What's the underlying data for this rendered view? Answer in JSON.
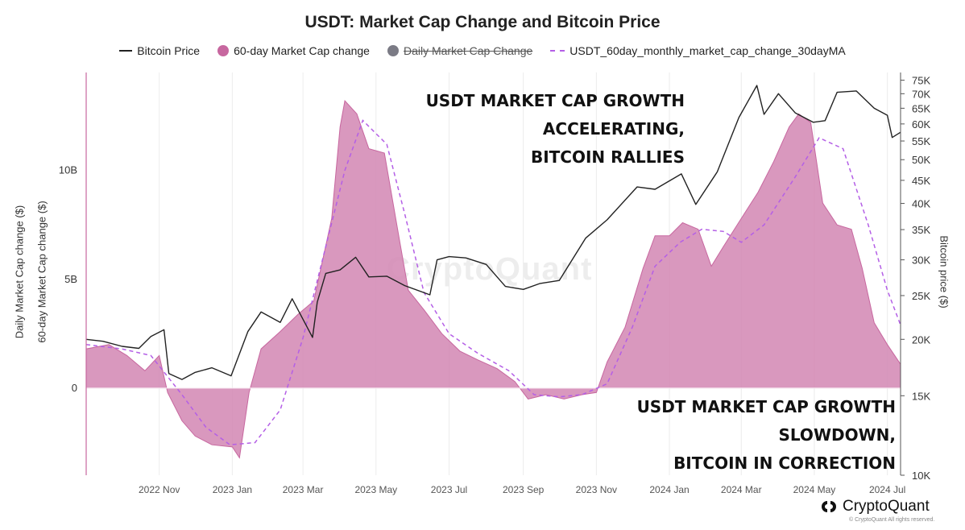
{
  "chart_data": {
    "type": "area",
    "title": "USDT: Market Cap Change and Bitcoin Price",
    "ylabel_left_1": "Daily Market Cap change ($)",
    "ylabel_left_2": "60-day Market Cap change ($)",
    "ylabel_right": "Bitcoin price ($)",
    "y_left_ticks": [
      {
        "value": 10000000000,
        "label": "10B"
      },
      {
        "value": 5000000000,
        "label": "5B"
      },
      {
        "value": 0,
        "label": "0"
      }
    ],
    "y_left_range": [
      -4000000000,
      14500000000
    ],
    "y_right_scale": "log",
    "y_right_range": [
      10000,
      78000
    ],
    "y_right_ticks": [
      {
        "value": 75000,
        "label": "75K"
      },
      {
        "value": 70000,
        "label": "70K"
      },
      {
        "value": 65000,
        "label": "65K"
      },
      {
        "value": 60000,
        "label": "60K"
      },
      {
        "value": 55000,
        "label": "55K"
      },
      {
        "value": 50000,
        "label": "50K"
      },
      {
        "value": 45000,
        "label": "45K"
      },
      {
        "value": 40000,
        "label": "40K"
      },
      {
        "value": 35000,
        "label": "35K"
      },
      {
        "value": 30000,
        "label": "30K"
      },
      {
        "value": 25000,
        "label": "25K"
      },
      {
        "value": 20000,
        "label": "20K"
      },
      {
        "value": 15000,
        "label": "15K"
      },
      {
        "value": 10000,
        "label": "10K"
      }
    ],
    "x_range": [
      "2022-09-01",
      "2024-07-12"
    ],
    "x_ticks": [
      {
        "value": "2022-11-01",
        "label": "2022 Nov"
      },
      {
        "value": "2023-01-01",
        "label": "2023 Jan"
      },
      {
        "value": "2023-03-01",
        "label": "2023 Mar"
      },
      {
        "value": "2023-05-01",
        "label": "2023 May"
      },
      {
        "value": "2023-07-01",
        "label": "2023 Jul"
      },
      {
        "value": "2023-09-01",
        "label": "2023 Sep"
      },
      {
        "value": "2023-11-01",
        "label": "2023 Nov"
      },
      {
        "value": "2024-01-01",
        "label": "2024 Jan"
      },
      {
        "value": "2024-03-01",
        "label": "2024 Mar"
      },
      {
        "value": "2024-05-01",
        "label": "2024 May"
      },
      {
        "value": "2024-07-01",
        "label": "2024 Jul"
      }
    ],
    "grid": true,
    "legend": [
      "Bitcoin Price",
      "60-day Market Cap change",
      "Daily Market Cap Change",
      "USDT_60day_monthly_market_cap_change_30dayMA"
    ],
    "colors": {
      "btc": "#222222",
      "mcap": "#c7679f",
      "mcap_fill": "#d286b3",
      "ma": "#b45fe6",
      "daily": "#7b7b85"
    },
    "series": [
      {
        "name": "Bitcoin Price",
        "axis": "right",
        "points": [
          [
            "2022-09-01",
            20000
          ],
          [
            "2022-09-15",
            19800
          ],
          [
            "2022-10-01",
            19300
          ],
          [
            "2022-10-15",
            19100
          ],
          [
            "2022-10-25",
            20300
          ],
          [
            "2022-11-05",
            21000
          ],
          [
            "2022-11-09",
            16800
          ],
          [
            "2022-11-20",
            16300
          ],
          [
            "2022-12-01",
            16900
          ],
          [
            "2022-12-15",
            17300
          ],
          [
            "2022-12-31",
            16600
          ],
          [
            "2023-01-14",
            20800
          ],
          [
            "2023-01-25",
            23000
          ],
          [
            "2023-02-10",
            21800
          ],
          [
            "2023-02-20",
            24600
          ],
          [
            "2023-03-09",
            20200
          ],
          [
            "2023-03-13",
            24200
          ],
          [
            "2023-03-20",
            28000
          ],
          [
            "2023-04-01",
            28500
          ],
          [
            "2023-04-14",
            30400
          ],
          [
            "2023-04-25",
            27500
          ],
          [
            "2023-05-10",
            27600
          ],
          [
            "2023-05-25",
            26300
          ],
          [
            "2023-06-15",
            25100
          ],
          [
            "2023-06-21",
            30000
          ],
          [
            "2023-07-01",
            30500
          ],
          [
            "2023-07-15",
            30300
          ],
          [
            "2023-08-01",
            29300
          ],
          [
            "2023-08-17",
            26200
          ],
          [
            "2023-09-01",
            25800
          ],
          [
            "2023-09-15",
            26600
          ],
          [
            "2023-10-01",
            27000
          ],
          [
            "2023-10-23",
            33500
          ],
          [
            "2023-11-10",
            36800
          ],
          [
            "2023-12-05",
            43500
          ],
          [
            "2023-12-20",
            43000
          ],
          [
            "2024-01-11",
            46500
          ],
          [
            "2024-01-23",
            39800
          ],
          [
            "2024-02-10",
            47000
          ],
          [
            "2024-02-28",
            62000
          ],
          [
            "2024-03-14",
            73000
          ],
          [
            "2024-03-20",
            63000
          ],
          [
            "2024-04-01",
            70000
          ],
          [
            "2024-04-15",
            63500
          ],
          [
            "2024-04-30",
            60500
          ],
          [
            "2024-05-10",
            61000
          ],
          [
            "2024-05-20",
            70500
          ],
          [
            "2024-06-05",
            71000
          ],
          [
            "2024-06-20",
            65000
          ],
          [
            "2024-07-01",
            62700
          ],
          [
            "2024-07-05",
            56000
          ],
          [
            "2024-07-12",
            57500
          ]
        ]
      },
      {
        "name": "60-day Market Cap change",
        "axis": "left",
        "points": [
          [
            "2022-09-01",
            1800000000
          ],
          [
            "2022-09-20",
            2000000000
          ],
          [
            "2022-10-05",
            1500000000
          ],
          [
            "2022-10-20",
            800000000
          ],
          [
            "2022-11-01",
            1500000000
          ],
          [
            "2022-11-08",
            -200000000
          ],
          [
            "2022-11-20",
            -1500000000
          ],
          [
            "2022-12-01",
            -2200000000
          ],
          [
            "2022-12-15",
            -2600000000
          ],
          [
            "2023-01-01",
            -2700000000
          ],
          [
            "2023-01-07",
            -3200000000
          ],
          [
            "2023-01-15",
            -200000000
          ],
          [
            "2023-01-25",
            1800000000
          ],
          [
            "2023-02-10",
            2600000000
          ],
          [
            "2023-02-25",
            3400000000
          ],
          [
            "2023-03-10",
            4000000000
          ],
          [
            "2023-03-25",
            7800000000
          ],
          [
            "2023-04-01",
            12000000000
          ],
          [
            "2023-04-05",
            13200000000
          ],
          [
            "2023-04-15",
            12600000000
          ],
          [
            "2023-04-25",
            11000000000
          ],
          [
            "2023-05-08",
            10800000000
          ],
          [
            "2023-05-20",
            7000000000
          ],
          [
            "2023-05-28",
            4500000000
          ],
          [
            "2023-06-10",
            3600000000
          ],
          [
            "2023-06-25",
            2500000000
          ],
          [
            "2023-07-10",
            1700000000
          ],
          [
            "2023-07-25",
            1300000000
          ],
          [
            "2023-08-10",
            900000000
          ],
          [
            "2023-08-25",
            300000000
          ],
          [
            "2023-09-05",
            -500000000
          ],
          [
            "2023-09-20",
            -300000000
          ],
          [
            "2023-10-05",
            -500000000
          ],
          [
            "2023-10-20",
            -300000000
          ],
          [
            "2023-11-01",
            -200000000
          ],
          [
            "2023-11-10",
            1200000000
          ],
          [
            "2023-11-25",
            2800000000
          ],
          [
            "2023-12-10",
            5500000000
          ],
          [
            "2023-12-20",
            7000000000
          ],
          [
            "2024-01-01",
            7000000000
          ],
          [
            "2024-01-12",
            7600000000
          ],
          [
            "2024-01-25",
            7300000000
          ],
          [
            "2024-02-05",
            5600000000
          ],
          [
            "2024-02-15",
            6500000000
          ],
          [
            "2024-03-01",
            7800000000
          ],
          [
            "2024-03-15",
            9000000000
          ],
          [
            "2024-03-28",
            10400000000
          ],
          [
            "2024-04-10",
            12000000000
          ],
          [
            "2024-04-18",
            12600000000
          ],
          [
            "2024-04-28",
            12200000000
          ],
          [
            "2024-05-08",
            8500000000
          ],
          [
            "2024-05-20",
            7500000000
          ],
          [
            "2024-06-01",
            7300000000
          ],
          [
            "2024-06-10",
            5500000000
          ],
          [
            "2024-06-20",
            3000000000
          ],
          [
            "2024-07-01",
            2000000000
          ],
          [
            "2024-07-12",
            1100000000
          ]
        ]
      },
      {
        "name": "USDT_60day_monthly_market_cap_change_30dayMA",
        "axis": "left",
        "points": [
          [
            "2022-09-01",
            2000000000
          ],
          [
            "2022-10-01",
            1800000000
          ],
          [
            "2022-10-25",
            1500000000
          ],
          [
            "2022-11-20",
            -300000000
          ],
          [
            "2022-12-10",
            -1800000000
          ],
          [
            "2022-12-30",
            -2600000000
          ],
          [
            "2023-01-20",
            -2500000000
          ],
          [
            "2023-02-10",
            -1000000000
          ],
          [
            "2023-03-01",
            2300000000
          ],
          [
            "2023-03-20",
            6500000000
          ],
          [
            "2023-04-05",
            10000000000
          ],
          [
            "2023-04-20",
            12300000000
          ],
          [
            "2023-05-10",
            11200000000
          ],
          [
            "2023-05-25",
            8000000000
          ],
          [
            "2023-06-10",
            4400000000
          ],
          [
            "2023-07-01",
            2500000000
          ],
          [
            "2023-07-25",
            1600000000
          ],
          [
            "2023-08-20",
            800000000
          ],
          [
            "2023-09-10",
            -300000000
          ],
          [
            "2023-10-01",
            -400000000
          ],
          [
            "2023-10-20",
            -300000000
          ],
          [
            "2023-11-10",
            200000000
          ],
          [
            "2023-12-01",
            2800000000
          ],
          [
            "2023-12-20",
            5600000000
          ],
          [
            "2024-01-10",
            6700000000
          ],
          [
            "2024-01-28",
            7300000000
          ],
          [
            "2024-02-15",
            7200000000
          ],
          [
            "2024-03-01",
            6700000000
          ],
          [
            "2024-03-20",
            7500000000
          ],
          [
            "2024-04-15",
            9700000000
          ],
          [
            "2024-05-05",
            11500000000
          ],
          [
            "2024-05-25",
            11000000000
          ],
          [
            "2024-06-15",
            7500000000
          ],
          [
            "2024-07-01",
            4500000000
          ],
          [
            "2024-07-12",
            2900000000
          ]
        ]
      }
    ]
  },
  "annotations": {
    "top": [
      "USDT MARKET CAP GROWTH",
      "ACCELERATING,",
      "BITCOIN RALLIES"
    ],
    "bottom": [
      "USDT MARKET CAP GROWTH",
      "SLOWDOWN,",
      "BITCOIN IN CORRECTION"
    ]
  },
  "watermark": "CryptoQuant",
  "brand": {
    "name": "CryptoQuant",
    "sub": "© CryptoQuant All rights reserved."
  }
}
